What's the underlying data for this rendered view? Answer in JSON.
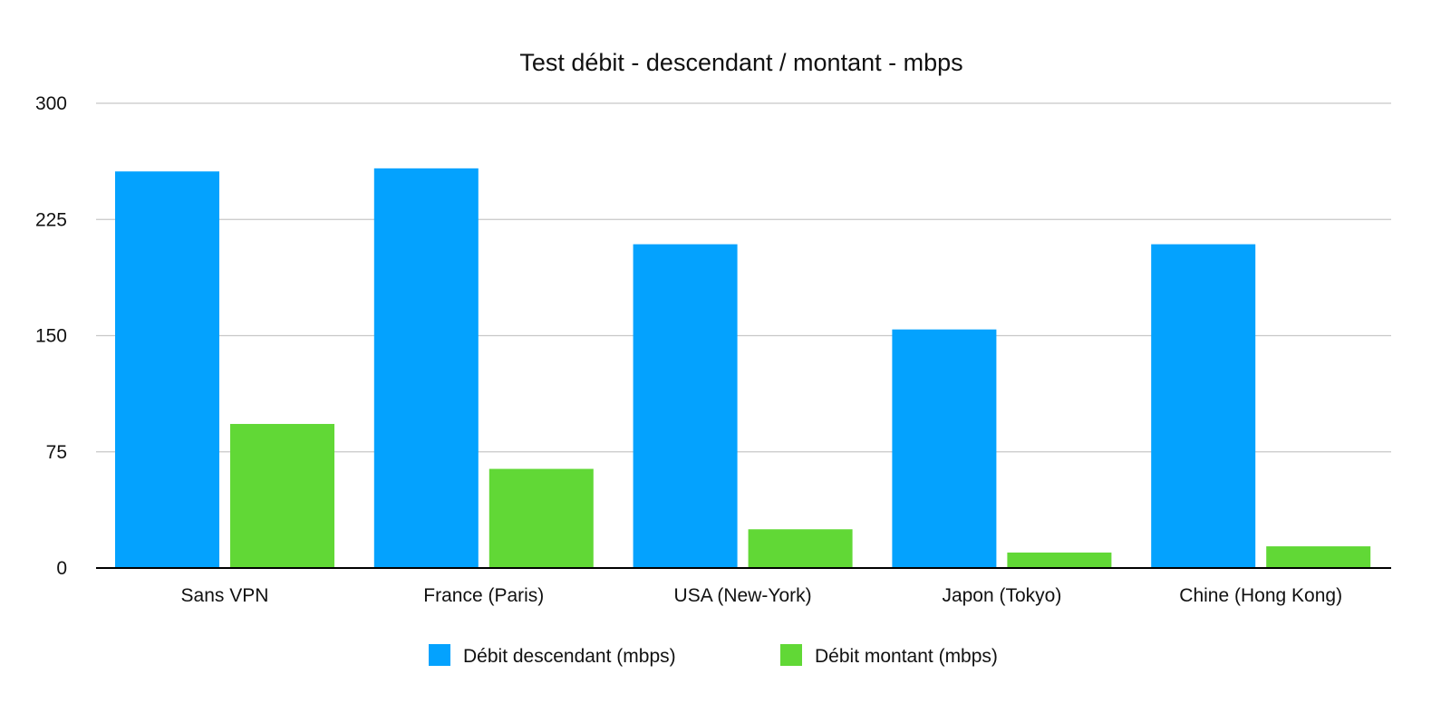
{
  "chart_data": {
    "type": "bar",
    "title": "Test débit - descendant / montant - mbps",
    "xlabel": "",
    "ylabel": "",
    "categories": [
      "Sans VPN",
      "France (Paris)",
      "USA (New-York)",
      "Japon (Tokyo)",
      "Chine (Hong Kong)"
    ],
    "series": [
      {
        "name": "Débit descendant (mbps)",
        "color": "#04a2fe",
        "values": [
          256,
          258,
          209,
          154,
          209
        ]
      },
      {
        "name": "Débit montant (mbps)",
        "color": "#61d836",
        "values": [
          93,
          64,
          25,
          10,
          14
        ]
      }
    ],
    "ylim": [
      0,
      300
    ],
    "yticks": [
      0,
      75,
      150,
      225,
      300
    ],
    "grid": true,
    "legend": "bottom"
  }
}
